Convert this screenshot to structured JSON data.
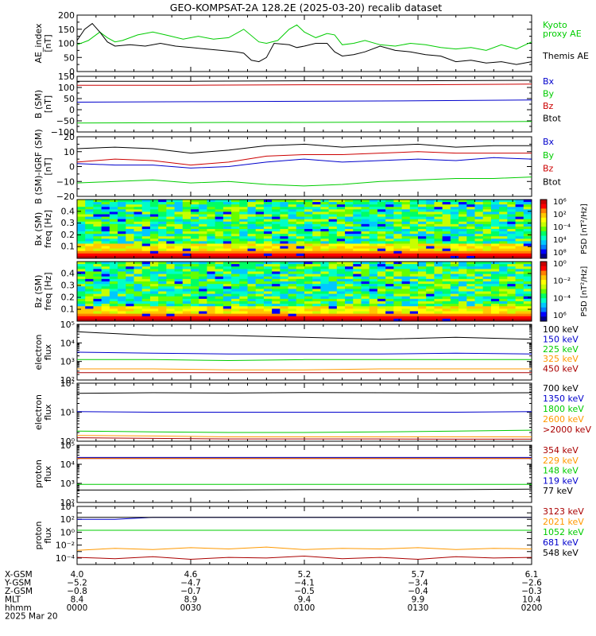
{
  "title": "GEO-KOMPSAT-2A 128.2E (2025-03-20) recalib dataset",
  "chart_data": [
    {
      "id": "ae",
      "type": "line",
      "ylabel": [
        "AE_index",
        "[nT]"
      ],
      "ylim": [
        0,
        200
      ],
      "yticks": [
        0,
        50,
        100,
        150,
        200
      ],
      "series": [
        {
          "name": "Kyoto proxy AE",
          "color": "#00cc00",
          "x": [
            0,
            3,
            6,
            8,
            10,
            12,
            16,
            20,
            24,
            28,
            32,
            36,
            40,
            44,
            48,
            50,
            53,
            56,
            58,
            60,
            63,
            66,
            68,
            70,
            73,
            76,
            80,
            84,
            88,
            92,
            96,
            100,
            104,
            108,
            112,
            116,
            120
          ],
          "y": [
            95,
            110,
            140,
            120,
            105,
            110,
            130,
            140,
            128,
            115,
            125,
            115,
            120,
            150,
            105,
            100,
            110,
            150,
            165,
            140,
            120,
            135,
            130,
            95,
            100,
            110,
            95,
            90,
            100,
            95,
            85,
            80,
            85,
            75,
            95,
            80,
            105
          ]
        },
        {
          "name": "Themis AE",
          "color": "#000000",
          "x": [
            0,
            2,
            4,
            6,
            8,
            10,
            14,
            18,
            22,
            26,
            30,
            34,
            38,
            42,
            44,
            46,
            48,
            50,
            52,
            56,
            58,
            60,
            63,
            66,
            68,
            70,
            73,
            76,
            80,
            84,
            88,
            92,
            96,
            100,
            104,
            108,
            112,
            116,
            120
          ],
          "y": [
            110,
            150,
            170,
            140,
            105,
            90,
            95,
            90,
            100,
            90,
            85,
            80,
            75,
            70,
            65,
            40,
            35,
            50,
            100,
            95,
            85,
            90,
            100,
            100,
            70,
            55,
            60,
            70,
            90,
            75,
            70,
            60,
            55,
            35,
            40,
            30,
            35,
            25,
            35
          ]
        }
      ]
    },
    {
      "id": "bsm",
      "type": "line",
      "ylabel": [
        "B (SM)",
        "[nT]"
      ],
      "ylim": [
        -100,
        150
      ],
      "yticks": [
        -100,
        -50,
        0,
        50,
        100,
        150
      ],
      "series": [
        {
          "name": "Bx",
          "color": "#0000cc",
          "x": [
            0,
            30,
            60,
            90,
            120
          ],
          "y": [
            34,
            36,
            38,
            40,
            44
          ]
        },
        {
          "name": "By",
          "color": "#00cc00",
          "x": [
            0,
            30,
            60,
            90,
            120
          ],
          "y": [
            -60,
            -58,
            -57,
            -55,
            -53
          ]
        },
        {
          "name": "Bz",
          "color": "#cc0000",
          "x": [
            0,
            30,
            60,
            90,
            120
          ],
          "y": [
            110,
            110,
            112,
            112,
            115
          ]
        },
        {
          "name": "Btot",
          "color": "#000000",
          "x": [
            0,
            30,
            60,
            90,
            120
          ],
          "y": [
            128,
            128,
            130,
            130,
            132
          ]
        }
      ]
    },
    {
      "id": "bigrf",
      "type": "line",
      "ylabel": [
        "B (SM)-IGRF (SM)",
        "[nT]"
      ],
      "ylim": [
        -20,
        20
      ],
      "yticks": [
        -20,
        -10,
        0,
        10,
        20
      ],
      "series": [
        {
          "name": "Bx",
          "color": "#0000cc",
          "x": [
            0,
            10,
            20,
            30,
            40,
            50,
            60,
            70,
            80,
            90,
            100,
            110,
            120
          ],
          "y": [
            2,
            1,
            1,
            -1,
            0,
            3,
            5,
            3,
            4,
            5,
            4,
            6,
            5
          ]
        },
        {
          "name": "By",
          "color": "#00cc00",
          "x": [
            0,
            10,
            20,
            30,
            40,
            50,
            60,
            70,
            80,
            90,
            100,
            110,
            120
          ],
          "y": [
            -11,
            -10,
            -9,
            -11,
            -10,
            -12,
            -13,
            -12,
            -10,
            -9,
            -8,
            -8,
            -7
          ]
        },
        {
          "name": "Bz",
          "color": "#cc0000",
          "x": [
            0,
            10,
            20,
            30,
            40,
            50,
            60,
            70,
            80,
            90,
            100,
            110,
            120
          ],
          "y": [
            3,
            5,
            4,
            1,
            3,
            7,
            8,
            8,
            9,
            10,
            9,
            9,
            9
          ]
        },
        {
          "name": "Btot",
          "color": "#000000",
          "x": [
            0,
            10,
            20,
            30,
            40,
            50,
            60,
            70,
            80,
            90,
            100,
            110,
            120
          ],
          "y": [
            12,
            13,
            12,
            9,
            11,
            14,
            15,
            13,
            14,
            15,
            13,
            14,
            14
          ]
        }
      ]
    },
    {
      "id": "bxpsd",
      "type": "heatmap",
      "ylabel": [
        "Bx (SM)",
        "freq [Hz]"
      ],
      "ylim": [
        0,
        0.5
      ],
      "yticks": [
        "0.1",
        "0.2",
        "0.3",
        "0.4"
      ],
      "colorbar": {
        "label": "PSD [nT²/Hz]",
        "ticks": [
          "10⁸",
          "10⁴",
          "10⁻⁴",
          "10²",
          "10⁶"
        ]
      }
    },
    {
      "id": "bzpsd",
      "type": "heatmap",
      "ylabel": [
        "Bz (SM)",
        "freq [Hz]"
      ],
      "ylim": [
        0,
        0.5
      ],
      "yticks": [
        "0.1",
        "0.2",
        "0.3",
        "0.4"
      ],
      "colorbar": {
        "label": "PSD [nT²/Hz]",
        "ticks": [
          "10⁶",
          "10⁻⁴",
          "10⁻²",
          "10⁰"
        ]
      }
    },
    {
      "id": "elow",
      "type": "line",
      "log": true,
      "ylabel": [
        "electron",
        "flux"
      ],
      "ydecades": [
        2,
        5
      ],
      "ticks": [
        "10²",
        "10³",
        "10⁴",
        "10⁵"
      ],
      "series": [
        {
          "name": "100 keV",
          "color": "#000000",
          "x": [
            0,
            20,
            40,
            60,
            80,
            100,
            120
          ],
          "y": [
            4.6,
            4.4,
            4.4,
            4.3,
            4.2,
            4.3,
            4.2
          ]
        },
        {
          "name": "150 keV",
          "color": "#0000cc",
          "x": [
            0,
            20,
            40,
            60,
            80,
            100,
            120
          ],
          "y": [
            3.5,
            3.45,
            3.4,
            3.4,
            3.4,
            3.45,
            3.4
          ]
        },
        {
          "name": "225 keV",
          "color": "#00cc00",
          "x": [
            0,
            20,
            40,
            60,
            80,
            100,
            120
          ],
          "y": [
            3.1,
            3.1,
            3.05,
            3.1,
            3.1,
            3.1,
            3.1
          ]
        },
        {
          "name": "325 keV",
          "color": "#ff9900",
          "x": [
            0,
            20,
            40,
            60,
            80,
            100,
            120
          ],
          "y": [
            2.6,
            2.6,
            2.55,
            2.55,
            2.6,
            2.6,
            2.6
          ]
        },
        {
          "name": "450 keV",
          "color": "#aa0000",
          "x": [
            0,
            20,
            40,
            60,
            80,
            100,
            120
          ],
          "y": [
            2.4,
            2.4,
            2.4,
            2.4,
            2.4,
            2.4,
            2.4
          ]
        }
      ]
    },
    {
      "id": "ehigh",
      "type": "line",
      "log": true,
      "ylabel": [
        "electron",
        "flux"
      ],
      "ydecades": [
        0,
        2
      ],
      "ticks": [
        "10⁰",
        "10¹",
        "10²"
      ],
      "series": [
        {
          "name": "700 keV",
          "color": "#000000",
          "x": [
            0,
            20,
            40,
            60,
            80,
            100,
            120
          ],
          "y": [
            1.65,
            1.67,
            1.66,
            1.68,
            1.67,
            1.66,
            1.67
          ]
        },
        {
          "name": "1350 keV",
          "color": "#0000cc",
          "x": [
            0,
            20,
            40,
            60,
            80,
            100,
            120
          ],
          "y": [
            1.02,
            1.0,
            1.0,
            1.0,
            1.0,
            1.0,
            1.02
          ]
        },
        {
          "name": "1800 keV",
          "color": "#00cc00",
          "x": [
            0,
            20,
            40,
            60,
            80,
            100,
            120
          ],
          "y": [
            0.35,
            0.32,
            0.3,
            0.3,
            0.32,
            0.35,
            0.38
          ]
        },
        {
          "name": "2600 keV",
          "color": "#ff9900",
          "x": [
            0,
            20,
            40,
            60,
            80,
            100,
            120
          ],
          "y": [
            0.2,
            0.18,
            0.15,
            0.15,
            0.15,
            0.15,
            0.15
          ]
        },
        {
          "name": ">2000 keV",
          "color": "#aa0000",
          "x": [
            0,
            20,
            40,
            60,
            80,
            100,
            120
          ],
          "y": [
            0.12,
            0.1,
            0.08,
            0.08,
            0.08,
            0.07,
            0.07
          ]
        }
      ]
    },
    {
      "id": "plow",
      "type": "line",
      "log": true,
      "ylabel": [
        "proton",
        "flux"
      ],
      "ydecades": [
        2,
        5
      ],
      "ticks": [
        "10²",
        "10³",
        "10⁴",
        "10⁵"
      ],
      "series": [
        {
          "name": "354 keV",
          "color": "#aa0000",
          "x": [
            0,
            20,
            40,
            60,
            80,
            100,
            120
          ],
          "y": [
            4.3,
            4.3,
            4.3,
            4.3,
            4.3,
            4.3,
            4.3
          ]
        },
        {
          "name": "229 keV",
          "color": "#ff9900",
          "x": [
            0,
            20,
            40,
            60,
            80,
            100,
            120
          ],
          "y": [
            4.33,
            4.33,
            4.33,
            4.33,
            4.33,
            4.33,
            4.33
          ]
        },
        {
          "name": "148 keV",
          "color": "#00cc00",
          "x": [
            0,
            20,
            40,
            60,
            80,
            100,
            120
          ],
          "y": [
            2.95,
            2.95,
            2.95,
            2.95,
            2.95,
            2.95,
            2.95
          ]
        },
        {
          "name": "119 keV",
          "color": "#0000cc",
          "x": [
            0,
            20,
            40,
            60,
            80,
            100,
            120
          ],
          "y": [
            4.36,
            4.36,
            4.36,
            4.36,
            4.36,
            4.36,
            4.36
          ]
        },
        {
          "name": "77 keV",
          "color": "#000000",
          "x": [
            0,
            20,
            40,
            60,
            80,
            100,
            120
          ],
          "y": [
            2.65,
            2.65,
            2.65,
            2.67,
            2.67,
            2.67,
            2.7
          ]
        }
      ]
    },
    {
      "id": "phigh",
      "type": "line",
      "log": true,
      "ylabel": [
        "proton",
        "flux"
      ],
      "ydecades": [
        -5,
        4
      ],
      "ticks": [
        "10⁻⁴",
        "10⁻²",
        "10⁰",
        "10²",
        "10⁴"
      ],
      "series": [
        {
          "name": "3123 keV",
          "color": "#aa0000",
          "x": [
            0,
            10,
            20,
            30,
            40,
            50,
            60,
            70,
            80,
            90,
            100,
            110,
            120
          ],
          "y": [
            -3.9,
            -4.1,
            -3.8,
            -4.2,
            -3.9,
            -4.0,
            -3.7,
            -4.1,
            -3.9,
            -4.2,
            -3.8,
            -4.0,
            -3.9
          ]
        },
        {
          "name": "2021 keV",
          "color": "#ff9900",
          "x": [
            0,
            10,
            20,
            30,
            40,
            50,
            60,
            70,
            80,
            90,
            100,
            110,
            120
          ],
          "y": [
            -2.8,
            -2.5,
            -2.7,
            -2.4,
            -2.6,
            -2.3,
            -2.7,
            -2.5,
            -2.6,
            -2.4,
            -2.7,
            -2.5,
            -2.6
          ]
        },
        {
          "name": "1052 keV",
          "color": "#00cc00",
          "x": [
            0,
            20,
            40,
            60,
            80,
            100,
            120
          ],
          "y": [
            0.3,
            0.3,
            0.3,
            0.3,
            0.3,
            0.3,
            0.3
          ]
        },
        {
          "name": "681 keV",
          "color": "#0000cc",
          "x": [
            0,
            10,
            20,
            40,
            60,
            80,
            100,
            120
          ],
          "y": [
            2.0,
            2.0,
            2.3,
            2.3,
            2.3,
            2.3,
            2.3,
            2.3
          ]
        },
        {
          "name": "548 keV",
          "color": "#000000",
          "x": [
            0,
            20,
            40,
            60,
            80,
            100,
            120
          ],
          "y": [
            2.3,
            2.3,
            2.3,
            2.3,
            2.3,
            2.3,
            2.3
          ]
        }
      ]
    }
  ],
  "xaxis": {
    "range": [
      0,
      120
    ],
    "rows": [
      {
        "label": "X-GSM",
        "values": [
          "4.0",
          "4.6",
          "5.2",
          "5.7",
          "6.1"
        ]
      },
      {
        "label": "Y-GSM",
        "values": [
          "-5.2",
          "-4.7",
          "-4.1",
          "-3.4",
          "-2.6"
        ]
      },
      {
        "label": "Z-GSM",
        "values": [
          "-0.8",
          "-0.7",
          "-0.5",
          "-0.4",
          "-0.3"
        ]
      },
      {
        "label": "MLT",
        "values": [
          "8.4",
          "8.9",
          "9.4",
          "9.9",
          "10.4"
        ]
      },
      {
        "label": "hhmm",
        "values": [
          "0000",
          "0030",
          "0100",
          "0130",
          "0200"
        ]
      }
    ],
    "date": "2025 Mar 20"
  }
}
